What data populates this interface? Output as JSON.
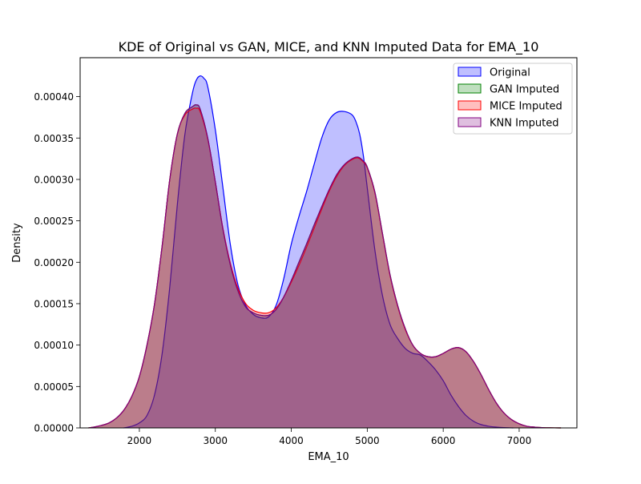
{
  "chart_data": {
    "type": "area",
    "title": "KDE of Original vs GAN, MICE, and KNN Imputed Data for EMA_10",
    "xlabel": "EMA_10",
    "ylabel": "Density",
    "xlim": [
      1220,
      7760
    ],
    "ylim": [
      0,
      0.000447
    ],
    "xticks": [
      2000,
      3000,
      4000,
      5000,
      6000,
      7000
    ],
    "xtick_labels": [
      "2000",
      "3000",
      "4000",
      "5000",
      "6000",
      "7000"
    ],
    "yticks": [
      0,
      5e-05,
      0.0001,
      0.00015,
      0.0002,
      0.00025,
      0.0003,
      0.00035,
      0.0004
    ],
    "ytick_labels": [
      "0.00000",
      "0.00005",
      "0.00010",
      "0.00015",
      "0.00020",
      "0.00025",
      "0.00030",
      "0.00035",
      "0.00040"
    ],
    "grid": false,
    "legend_position": "top-right",
    "series": [
      {
        "name": "Original",
        "color": "#0000ff",
        "fill_opacity": 0.25,
        "x": [
          1790,
          1900,
          2000,
          2100,
          2200,
          2300,
          2400,
          2500,
          2600,
          2700,
          2750,
          2800,
          2850,
          2900,
          3000,
          3100,
          3200,
          3300,
          3400,
          3500,
          3600,
          3700,
          3800,
          3900,
          4000,
          4100,
          4200,
          4300,
          4400,
          4500,
          4600,
          4700,
          4800,
          4850,
          4900,
          4950,
          5000,
          5100,
          5200,
          5300,
          5400,
          5500,
          5600,
          5700,
          5800,
          5900,
          6000,
          6100,
          6200,
          6300,
          6400,
          6500,
          6600,
          6700,
          6800,
          6920
        ],
        "y": [
          0,
          2e-06,
          6e-06,
          1.5e-05,
          4e-05,
          9e-05,
          0.00017,
          0.00027,
          0.000355,
          0.000405,
          0.00042,
          0.000425,
          0.000422,
          0.000412,
          0.00036,
          0.00029,
          0.00022,
          0.000172,
          0.000148,
          0.000137,
          0.000133,
          0.000134,
          0.000148,
          0.00018,
          0.000222,
          0.000255,
          0.000285,
          0.000318,
          0.00035,
          0.000372,
          0.000381,
          0.000382,
          0.000378,
          0.00037,
          0.000355,
          0.000328,
          0.00029,
          0.000215,
          0.00016,
          0.000125,
          0.000108,
          9.6e-05,
          9e-05,
          8.8e-05,
          8e-05,
          7e-05,
          5.7e-05,
          4e-05,
          2.6e-05,
          1.5e-05,
          8e-06,
          4e-06,
          2e-06,
          1e-06,
          4e-07,
          0
        ]
      },
      {
        "name": "GAN Imputed",
        "color": "#008000",
        "fill_opacity": 0.25,
        "x": [
          1330,
          1400,
          1500,
          1600,
          1700,
          1800,
          1900,
          2000,
          2100,
          2200,
          2300,
          2400,
          2500,
          2600,
          2700,
          2750,
          2800,
          2900,
          3000,
          3100,
          3200,
          3300,
          3400,
          3500,
          3600,
          3700,
          3800,
          3900,
          4000,
          4100,
          4200,
          4300,
          4400,
          4500,
          4600,
          4700,
          4800,
          4880,
          4950,
          5000,
          5100,
          5200,
          5300,
          5400,
          5500,
          5600,
          5700,
          5800,
          5900,
          6000,
          6100,
          6200,
          6300,
          6400,
          6500,
          6600,
          6700,
          6800,
          6900,
          7000,
          7100,
          7200,
          7300,
          7400,
          7550
        ],
        "y": [
          0,
          1e-06,
          3e-06,
          6e-06,
          1.2e-05,
          2.2e-05,
          3.8e-05,
          6.2e-05,
          0.0001,
          0.00015,
          0.00022,
          0.0003,
          0.000355,
          0.00038,
          0.000388,
          0.00039,
          0.000385,
          0.00035,
          0.000297,
          0.00024,
          0.000196,
          0.000165,
          0.000146,
          0.000139,
          0.000136,
          0.000136,
          0.000143,
          0.000158,
          0.000178,
          0.0002,
          0.000222,
          0.000245,
          0.000267,
          0.000288,
          0.000306,
          0.000318,
          0.000325,
          0.000327,
          0.000322,
          0.000315,
          0.000285,
          0.000235,
          0.000185,
          0.000148,
          0.00012,
          0.0001,
          9e-05,
          8.6e-05,
          8.6e-05,
          9e-05,
          9.5e-05,
          9.7e-05,
          9.2e-05,
          8e-05,
          6.4e-05,
          4.6e-05,
          3e-05,
          1.8e-05,
          1e-05,
          5e-06,
          2e-06,
          1e-06,
          4e-07,
          1e-07,
          0
        ]
      },
      {
        "name": "MICE Imputed",
        "color": "#ff0000",
        "fill_opacity": 0.25,
        "x": [
          1330,
          1400,
          1500,
          1600,
          1700,
          1800,
          1900,
          2000,
          2100,
          2200,
          2300,
          2400,
          2500,
          2600,
          2700,
          2750,
          2800,
          2900,
          3000,
          3100,
          3200,
          3300,
          3400,
          3500,
          3600,
          3700,
          3800,
          3900,
          4000,
          4100,
          4200,
          4300,
          4400,
          4500,
          4600,
          4700,
          4800,
          4880,
          4950,
          5000,
          5100,
          5200,
          5300,
          5400,
          5500,
          5600,
          5700,
          5800,
          5900,
          6000,
          6100,
          6200,
          6300,
          6400,
          6500,
          6600,
          6700,
          6800,
          6900,
          7000,
          7100,
          7200,
          7300,
          7400,
          7550
        ],
        "y": [
          0,
          1e-06,
          3e-06,
          6e-06,
          1.2e-05,
          2.2e-05,
          3.8e-05,
          6.2e-05,
          0.0001,
          0.00015,
          0.00022,
          0.0003,
          0.000355,
          0.000378,
          0.000385,
          0.000386,
          0.000382,
          0.000349,
          0.000297,
          0.000241,
          0.000198,
          0.000168,
          0.00015,
          0.000142,
          0.000139,
          0.000139,
          0.000145,
          0.000158,
          0.000176,
          0.000196,
          0.000218,
          0.000241,
          0.000264,
          0.000286,
          0.000304,
          0.000317,
          0.000324,
          0.000326,
          0.000321,
          0.000314,
          0.000284,
          0.000234,
          0.000184,
          0.000147,
          0.000119,
          0.0001,
          9e-05,
          8.6e-05,
          8.6e-05,
          9e-05,
          9.5e-05,
          9.7e-05,
          9.2e-05,
          8e-05,
          6.4e-05,
          4.6e-05,
          3e-05,
          1.8e-05,
          1e-05,
          5e-06,
          2e-06,
          1e-06,
          4e-07,
          1e-07,
          0
        ]
      },
      {
        "name": "KNN Imputed",
        "color": "#800080",
        "fill_opacity": 0.25,
        "x": [
          1330,
          1400,
          1500,
          1600,
          1700,
          1800,
          1900,
          2000,
          2100,
          2200,
          2300,
          2400,
          2500,
          2600,
          2700,
          2750,
          2800,
          2900,
          3000,
          3100,
          3200,
          3300,
          3400,
          3500,
          3600,
          3700,
          3800,
          3900,
          4000,
          4100,
          4200,
          4300,
          4400,
          4500,
          4600,
          4700,
          4800,
          4880,
          4950,
          5000,
          5100,
          5200,
          5300,
          5400,
          5500,
          5600,
          5700,
          5800,
          5900,
          6000,
          6100,
          6200,
          6300,
          6400,
          6500,
          6600,
          6700,
          6800,
          6900,
          7000,
          7100,
          7200,
          7300,
          7400,
          7550
        ],
        "y": [
          0,
          1e-06,
          3e-06,
          6e-06,
          1.2e-05,
          2.2e-05,
          3.8e-05,
          6.2e-05,
          0.0001,
          0.00015,
          0.00022,
          0.0003,
          0.000355,
          0.00038,
          0.000388,
          0.00039,
          0.000385,
          0.00035,
          0.000297,
          0.00024,
          0.000196,
          0.000165,
          0.000146,
          0.000139,
          0.000136,
          0.000136,
          0.000143,
          0.000158,
          0.000178,
          0.0002,
          0.000222,
          0.000245,
          0.000267,
          0.000288,
          0.000306,
          0.000318,
          0.000325,
          0.000327,
          0.000322,
          0.000315,
          0.000285,
          0.000235,
          0.000185,
          0.000148,
          0.00012,
          0.0001,
          9e-05,
          8.6e-05,
          8.6e-05,
          9e-05,
          9.5e-05,
          9.7e-05,
          9.2e-05,
          8e-05,
          6.4e-05,
          4.6e-05,
          3e-05,
          1.8e-05,
          1e-05,
          5e-06,
          2e-06,
          1e-06,
          4e-07,
          1e-07,
          0
        ]
      }
    ]
  }
}
